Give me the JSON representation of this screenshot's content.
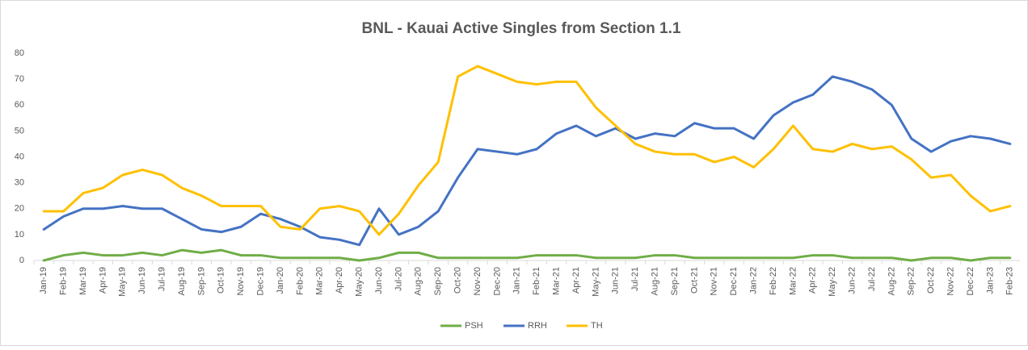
{
  "chart_data": {
    "type": "line",
    "title": "BNL - Kauai Active Singles from Section 1.1",
    "categories": [
      "Jan-19",
      "Feb-19",
      "Mar-19",
      "Apr-19",
      "May-19",
      "Jun-19",
      "Jul-19",
      "Aug-19",
      "Sep-19",
      "Oct-19",
      "Nov-19",
      "Dec-19",
      "Jan-20",
      "Feb-20",
      "Mar-20",
      "Apr-20",
      "May-20",
      "Jun-20",
      "Jul-20",
      "Aug-20",
      "Sep-20",
      "Oct-20",
      "Nov-20",
      "Dec-20",
      "Jan-21",
      "Feb-21",
      "Mar-21",
      "Apr-21",
      "May-21",
      "Jun-21",
      "Jul-21",
      "Aug-21",
      "Sep-21",
      "Oct-21",
      "Nov-21",
      "Dec-21",
      "Jan-22",
      "Feb-22",
      "Mar-22",
      "Apr-22",
      "May-22",
      "Jun-22",
      "Jul-22",
      "Aug-22",
      "Sep-22",
      "Oct-22",
      "Nov-22",
      "Dec-22",
      "Jan-23",
      "Feb-23"
    ],
    "series": [
      {
        "name": "PSH",
        "color": "#70ad47",
        "values": [
          0,
          2,
          3,
          2,
          2,
          3,
          2,
          4,
          3,
          4,
          2,
          2,
          1,
          1,
          1,
          1,
          0,
          1,
          3,
          3,
          1,
          1,
          1,
          1,
          1,
          2,
          2,
          2,
          1,
          1,
          1,
          2,
          2,
          1,
          1,
          1,
          1,
          1,
          1,
          2,
          2,
          1,
          1,
          1,
          0,
          1,
          1,
          0,
          1,
          1
        ]
      },
      {
        "name": "RRH",
        "color": "#4472c4",
        "values": [
          12,
          17,
          20,
          20,
          21,
          20,
          20,
          16,
          12,
          11,
          13,
          18,
          16,
          13,
          9,
          8,
          6,
          20,
          10,
          13,
          19,
          32,
          43,
          42,
          41,
          43,
          49,
          52,
          48,
          51,
          47,
          49,
          48,
          53,
          51,
          51,
          47,
          56,
          61,
          64,
          71,
          69,
          66,
          60,
          47,
          42,
          46,
          48,
          47,
          45
        ]
      },
      {
        "name": "TH",
        "color": "#ffc000",
        "values": [
          19,
          19,
          26,
          28,
          33,
          35,
          33,
          28,
          25,
          21,
          21,
          21,
          13,
          12,
          20,
          21,
          19,
          10,
          18,
          29,
          38,
          71,
          75,
          72,
          69,
          68,
          69,
          69,
          59,
          52,
          45,
          42,
          41,
          41,
          38,
          40,
          36,
          43,
          52,
          43,
          42,
          45,
          43,
          44,
          39,
          32,
          33,
          25,
          19,
          21
        ]
      }
    ],
    "ylim": [
      0,
      80
    ],
    "yticks": [
      0,
      10,
      20,
      30,
      40,
      50,
      60,
      70,
      80
    ],
    "legend": "bottom"
  }
}
